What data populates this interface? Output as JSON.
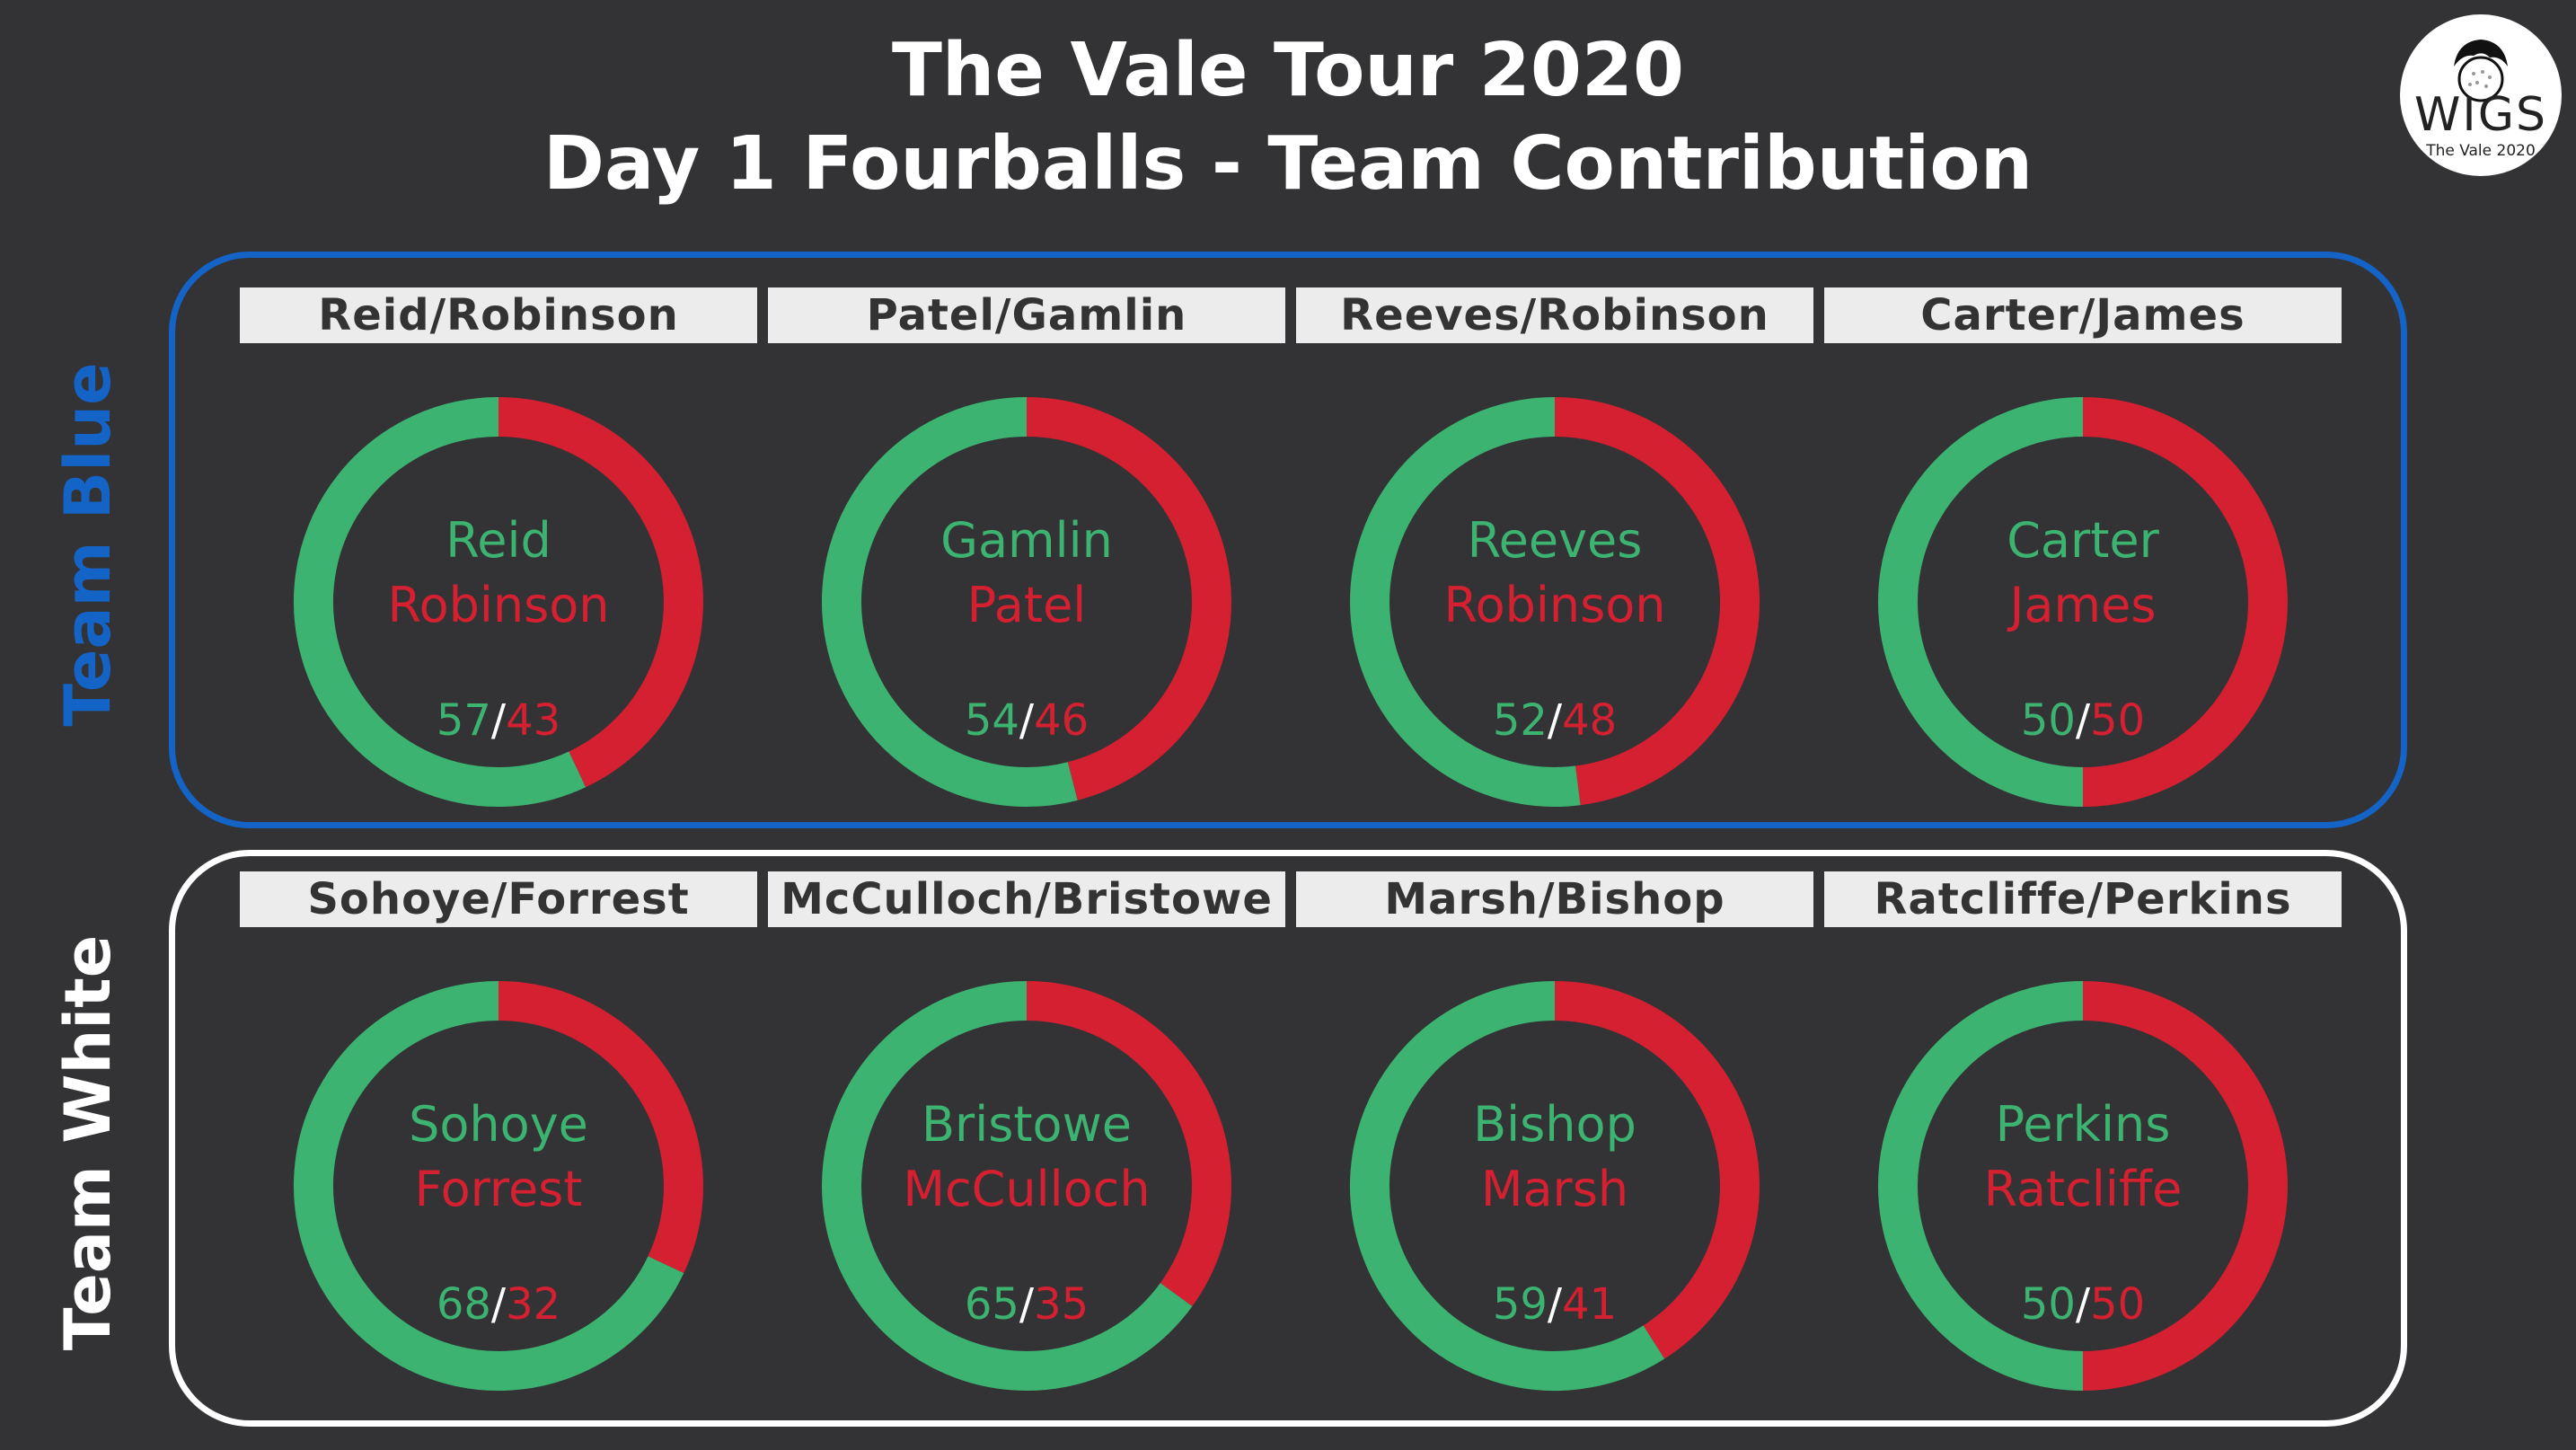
{
  "header": {
    "title_line1": "The Vale Tour 2020",
    "title_line2": "Day 1 Fourballs - Team Contribution"
  },
  "logo": {
    "text": "WIGS",
    "subtext": "The Vale 2020",
    "icon": "golf-ball-head-icon"
  },
  "teams": [
    {
      "name": "Team Blue",
      "color": "#1464c8"
    },
    {
      "name": "Team White",
      "color": "#ffffff"
    }
  ],
  "colors": {
    "green": "#3cb371",
    "red": "#d42030",
    "slash": "#ffffff"
  },
  "chart_data": [
    {
      "type": "pie",
      "team": "Team Blue",
      "title": "Reid/Robinson",
      "labels": [
        "Reid",
        "Robinson"
      ],
      "values": [
        57,
        43
      ]
    },
    {
      "type": "pie",
      "team": "Team Blue",
      "title": "Patel/Gamlin",
      "labels": [
        "Gamlin",
        "Patel"
      ],
      "values": [
        54,
        46
      ]
    },
    {
      "type": "pie",
      "team": "Team Blue",
      "title": "Reeves/Robinson",
      "labels": [
        "Reeves",
        "Robinson"
      ],
      "values": [
        52,
        48
      ]
    },
    {
      "type": "pie",
      "team": "Team Blue",
      "title": "Carter/James",
      "labels": [
        "Carter",
        "James"
      ],
      "values": [
        50,
        50
      ]
    },
    {
      "type": "pie",
      "team": "Team White",
      "title": "Sohoye/Forrest",
      "labels": [
        "Sohoye",
        "Forrest"
      ],
      "values": [
        68,
        32
      ]
    },
    {
      "type": "pie",
      "team": "Team White",
      "title": "McCulloch/Bristowe",
      "labels": [
        "Bristowe",
        "McCulloch"
      ],
      "values": [
        65,
        35
      ]
    },
    {
      "type": "pie",
      "team": "Team White",
      "title": "Marsh/Bishop",
      "labels": [
        "Bishop",
        "Marsh"
      ],
      "values": [
        59,
        41
      ]
    },
    {
      "type": "pie",
      "team": "Team White",
      "title": "Ratcliffe/Perkins",
      "labels": [
        "Perkins",
        "Ratcliffe"
      ],
      "values": [
        50,
        50
      ]
    }
  ]
}
